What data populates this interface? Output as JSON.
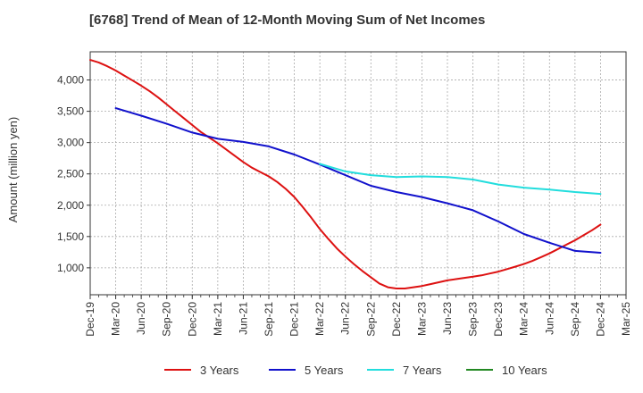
{
  "title": "[6768]  Trend of Mean of 12-Month Moving Sum of Net Incomes",
  "chart_data": {
    "type": "line",
    "title": "[6768]  Trend of Mean of 12-Month Moving Sum of Net Incomes",
    "xlabel": "",
    "ylabel": "Amount (million yen)",
    "x_ticks": [
      "Dec-19",
      "Mar-20",
      "Jun-20",
      "Sep-20",
      "Dec-20",
      "Mar-21",
      "Jun-21",
      "Sep-21",
      "Dec-21",
      "Mar-22",
      "Jun-22",
      "Sep-22",
      "Dec-22",
      "Mar-23",
      "Jun-23",
      "Sep-23",
      "Dec-23",
      "Mar-24",
      "Jun-24",
      "Sep-24",
      "Dec-24",
      "Mar-25"
    ],
    "y_ticks": [
      1000,
      1500,
      2000,
      2500,
      3000,
      3500,
      4000
    ],
    "y_tick_labels": [
      "1,000",
      "1,500",
      "2,000",
      "2,500",
      "3,000",
      "3,500",
      "4,000"
    ],
    "ylim": [
      570,
      4450
    ],
    "grid": true,
    "legend_position": "bottom",
    "series": [
      {
        "name": "3 Years",
        "color": "#dd1111",
        "x": [
          "Dec-19",
          "Jan-20",
          "Feb-20",
          "Mar-20",
          "Apr-20",
          "May-20",
          "Jun-20",
          "Jul-20",
          "Aug-20",
          "Sep-20",
          "Oct-20",
          "Nov-20",
          "Dec-20",
          "Jan-21",
          "Feb-21",
          "Mar-21",
          "Apr-21",
          "May-21",
          "Jun-21",
          "Jul-21",
          "Aug-21",
          "Sep-21",
          "Oct-21",
          "Nov-21",
          "Dec-21",
          "Jan-22",
          "Feb-22",
          "Mar-22",
          "Apr-22",
          "May-22",
          "Jun-22",
          "Jul-22",
          "Aug-22",
          "Sep-22",
          "Oct-22",
          "Nov-22",
          "Dec-22",
          "Jan-23",
          "Feb-23",
          "Mar-23",
          "Apr-23",
          "May-23",
          "Jun-23",
          "Jul-23",
          "Aug-23",
          "Sep-23",
          "Oct-23",
          "Nov-23",
          "Dec-23",
          "Jan-24",
          "Feb-24",
          "Mar-24",
          "Apr-24",
          "May-24",
          "Jun-24",
          "Jul-24",
          "Aug-24",
          "Sep-24",
          "Oct-24",
          "Nov-24",
          "Dec-24"
        ],
        "values": [
          4320,
          4280,
          4220,
          4150,
          4070,
          3990,
          3910,
          3820,
          3720,
          3610,
          3500,
          3390,
          3280,
          3170,
          3080,
          2990,
          2890,
          2790,
          2690,
          2600,
          2530,
          2460,
          2370,
          2260,
          2130,
          1970,
          1800,
          1620,
          1460,
          1310,
          1180,
          1060,
          950,
          850,
          750,
          690,
          670,
          670,
          690,
          710,
          740,
          770,
          800,
          820,
          840,
          860,
          880,
          910,
          940,
          980,
          1020,
          1060,
          1110,
          1170,
          1230,
          1300,
          1370,
          1440,
          1520,
          1600,
          1690
        ]
      },
      {
        "name": "5 Years",
        "color": "#1111cc",
        "x": [
          "Dec-19",
          "Mar-20",
          "Jun-20",
          "Sep-20",
          "Dec-20",
          "Mar-21",
          "Jun-21",
          "Sep-21",
          "Dec-21",
          "Mar-22",
          "Jun-22",
          "Sep-22",
          "Dec-22",
          "Mar-23",
          "Jun-23",
          "Sep-23",
          "Dec-23",
          "Mar-24",
          "Jun-24",
          "Sep-24",
          "Dec-24"
        ],
        "values": [
          null,
          3550,
          3430,
          3300,
          3160,
          3060,
          3010,
          2940,
          2810,
          2650,
          2480,
          2310,
          2210,
          2130,
          2030,
          1920,
          1740,
          1540,
          1400,
          1270,
          1240
        ]
      },
      {
        "name": "7 Years",
        "color": "#22dddd",
        "x": [
          "Dec-19",
          "Mar-20",
          "Jun-20",
          "Sep-20",
          "Dec-20",
          "Mar-21",
          "Jun-21",
          "Sep-21",
          "Dec-21",
          "Mar-22",
          "Jun-22",
          "Sep-22",
          "Dec-22",
          "Mar-23",
          "Jun-23",
          "Sep-23",
          "Dec-23",
          "Mar-24",
          "Jun-24",
          "Sep-24",
          "Dec-24"
        ],
        "values": [
          null,
          null,
          null,
          null,
          null,
          null,
          null,
          null,
          null,
          2660,
          2540,
          2480,
          2450,
          2460,
          2450,
          2410,
          2330,
          2280,
          2250,
          2210,
          2180
        ]
      },
      {
        "name": "10 Years",
        "color": "#228822",
        "x": [],
        "values": []
      }
    ]
  }
}
